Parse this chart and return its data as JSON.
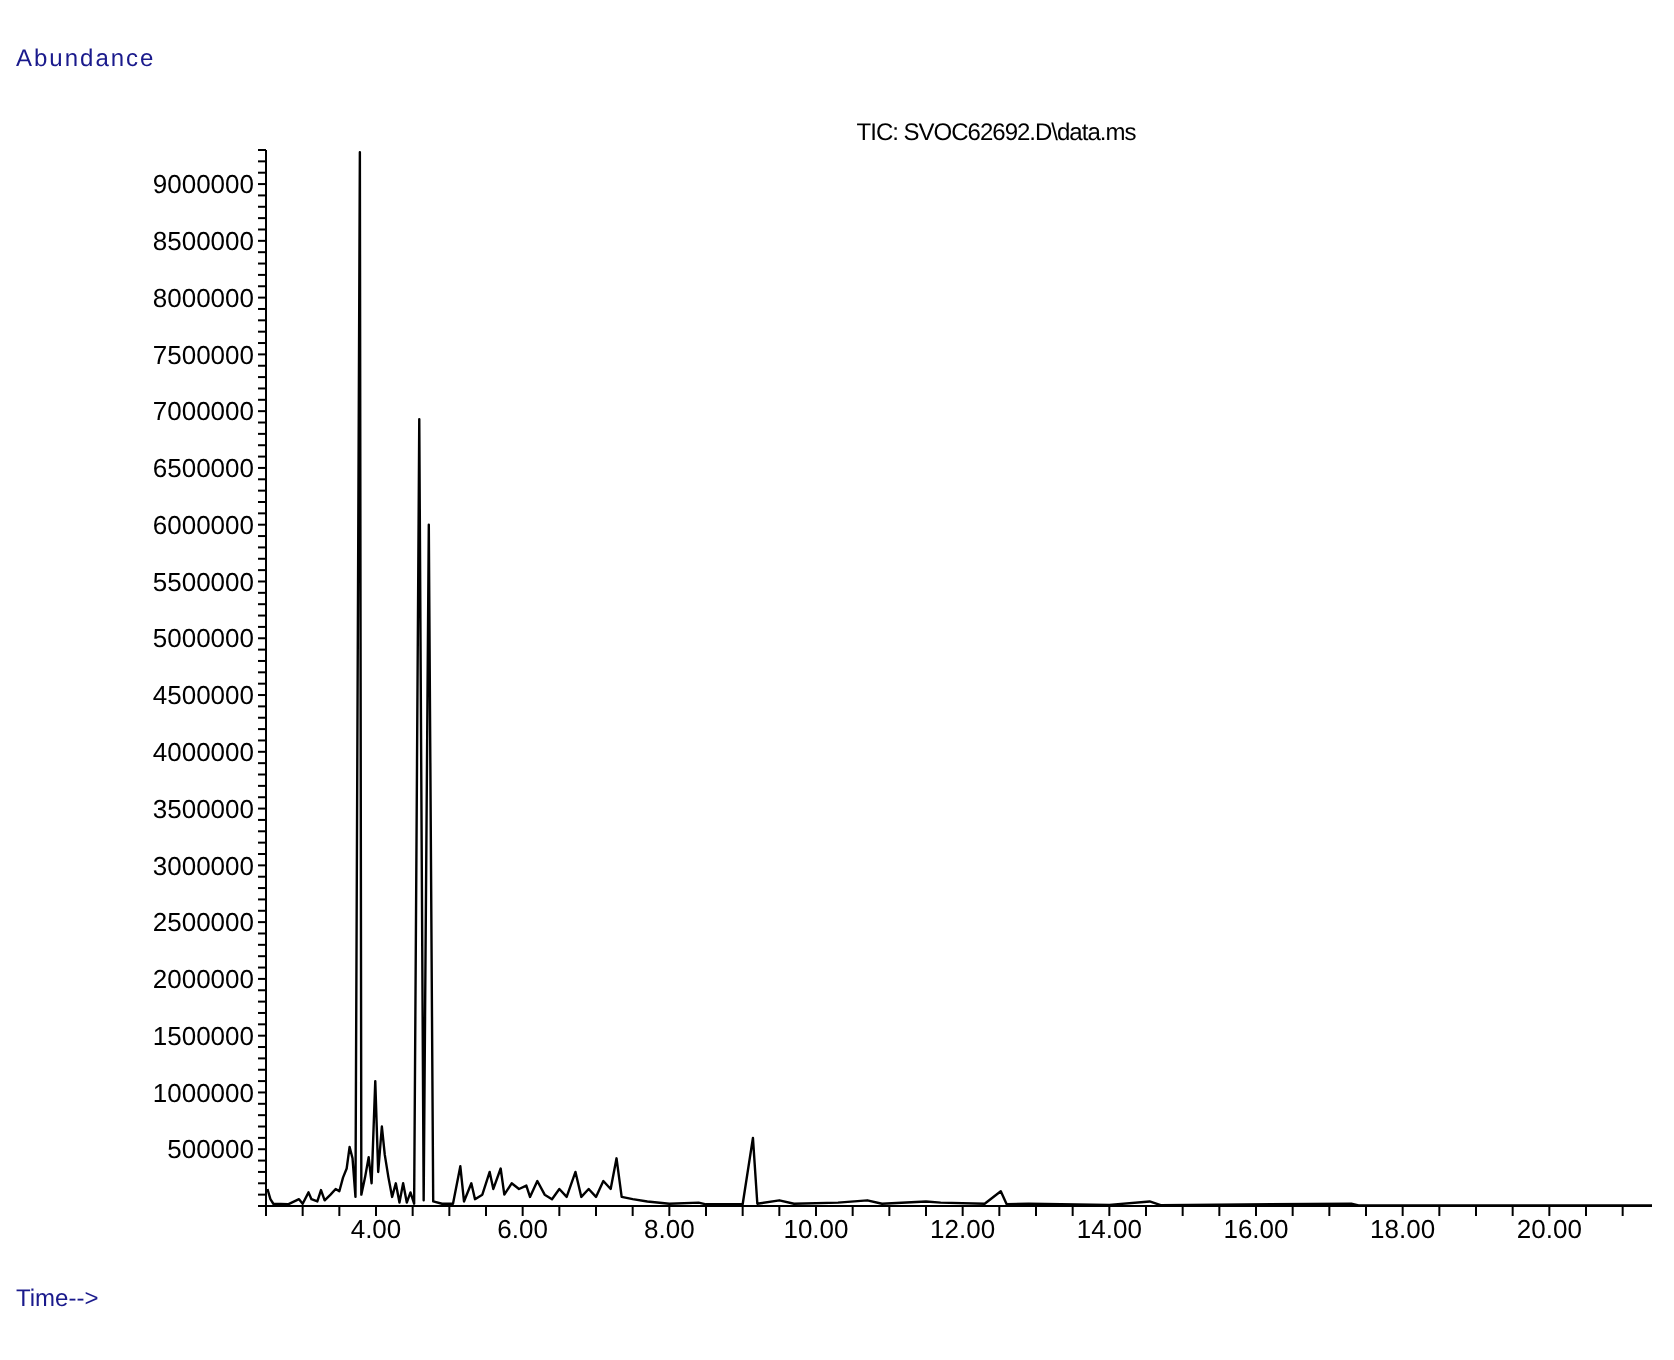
{
  "chart_data": {
    "type": "line",
    "title": "TIC: SVOC62692.D\\data.ms",
    "ylabel": "Abundance",
    "xlabel": "Time-->",
    "xlim": [
      2.5,
      21.4
    ],
    "xticks": [
      {
        "value": 4,
        "label": "4.00"
      },
      {
        "value": 6,
        "label": "6.00"
      },
      {
        "value": 8,
        "label": "8.00"
      },
      {
        "value": 10,
        "label": "10.00"
      },
      {
        "value": 12,
        "label": "12.00"
      },
      {
        "value": 14,
        "label": "14.00"
      },
      {
        "value": 16,
        "label": "16.00"
      },
      {
        "value": 18,
        "label": "18.00"
      },
      {
        "value": 20,
        "label": "20.00"
      }
    ],
    "ylim": [
      0,
      9300000
    ],
    "yticks": [
      500000,
      1000000,
      1500000,
      2000000,
      2500000,
      3000000,
      3500000,
      4000000,
      4500000,
      5000000,
      5500000,
      6000000,
      6500000,
      7000000,
      7500000,
      8000000,
      8500000,
      9000000
    ],
    "grid": false,
    "legend": false,
    "marker": "none",
    "line_style": "solid",
    "series": [
      {
        "color": "#000000",
        "x": [
          2.52,
          2.56,
          2.6,
          2.8,
          2.95,
          3.0,
          3.08,
          3.12,
          3.2,
          3.25,
          3.3,
          3.38,
          3.45,
          3.5,
          3.55,
          3.6,
          3.64,
          3.68,
          3.72,
          3.78,
          3.8,
          3.85,
          3.9,
          3.94,
          3.99,
          4.03,
          4.08,
          4.12,
          4.17,
          4.22,
          4.27,
          4.32,
          4.37,
          4.42,
          4.47,
          4.52,
          4.59,
          4.65,
          4.72,
          4.78,
          4.9,
          5.05,
          5.15,
          5.2,
          5.3,
          5.35,
          5.45,
          5.55,
          5.6,
          5.7,
          5.75,
          5.85,
          5.95,
          6.05,
          6.1,
          6.2,
          6.3,
          6.4,
          6.5,
          6.6,
          6.72,
          6.8,
          6.9,
          7.0,
          7.1,
          7.2,
          7.28,
          7.35,
          7.5,
          7.7,
          8.0,
          8.4,
          8.5,
          9.0,
          9.14,
          9.2,
          9.5,
          9.7,
          10.3,
          10.7,
          10.9,
          11.5,
          11.7,
          12.3,
          12.52,
          12.6,
          12.9,
          14.0,
          14.55,
          14.7,
          17.3,
          17.4,
          21.4
        ],
        "values": [
          150000,
          60000,
          20000,
          15000,
          60000,
          20000,
          120000,
          60000,
          40000,
          140000,
          50000,
          100000,
          150000,
          130000,
          250000,
          330000,
          520000,
          420000,
          80000,
          9280000,
          100000,
          250000,
          430000,
          200000,
          1100000,
          300000,
          700000,
          450000,
          250000,
          80000,
          200000,
          30000,
          200000,
          30000,
          120000,
          20000,
          6930000,
          50000,
          6000000,
          40000,
          20000,
          20000,
          350000,
          40000,
          200000,
          60000,
          100000,
          300000,
          150000,
          330000,
          100000,
          200000,
          150000,
          180000,
          80000,
          220000,
          100000,
          60000,
          150000,
          80000,
          300000,
          80000,
          150000,
          80000,
          220000,
          150000,
          420000,
          80000,
          60000,
          40000,
          20000,
          30000,
          15000,
          15000,
          600000,
          20000,
          50000,
          20000,
          30000,
          50000,
          20000,
          40000,
          30000,
          20000,
          130000,
          15000,
          20000,
          10000,
          40000,
          8000,
          20000,
          5000,
          5000
        ]
      }
    ]
  }
}
